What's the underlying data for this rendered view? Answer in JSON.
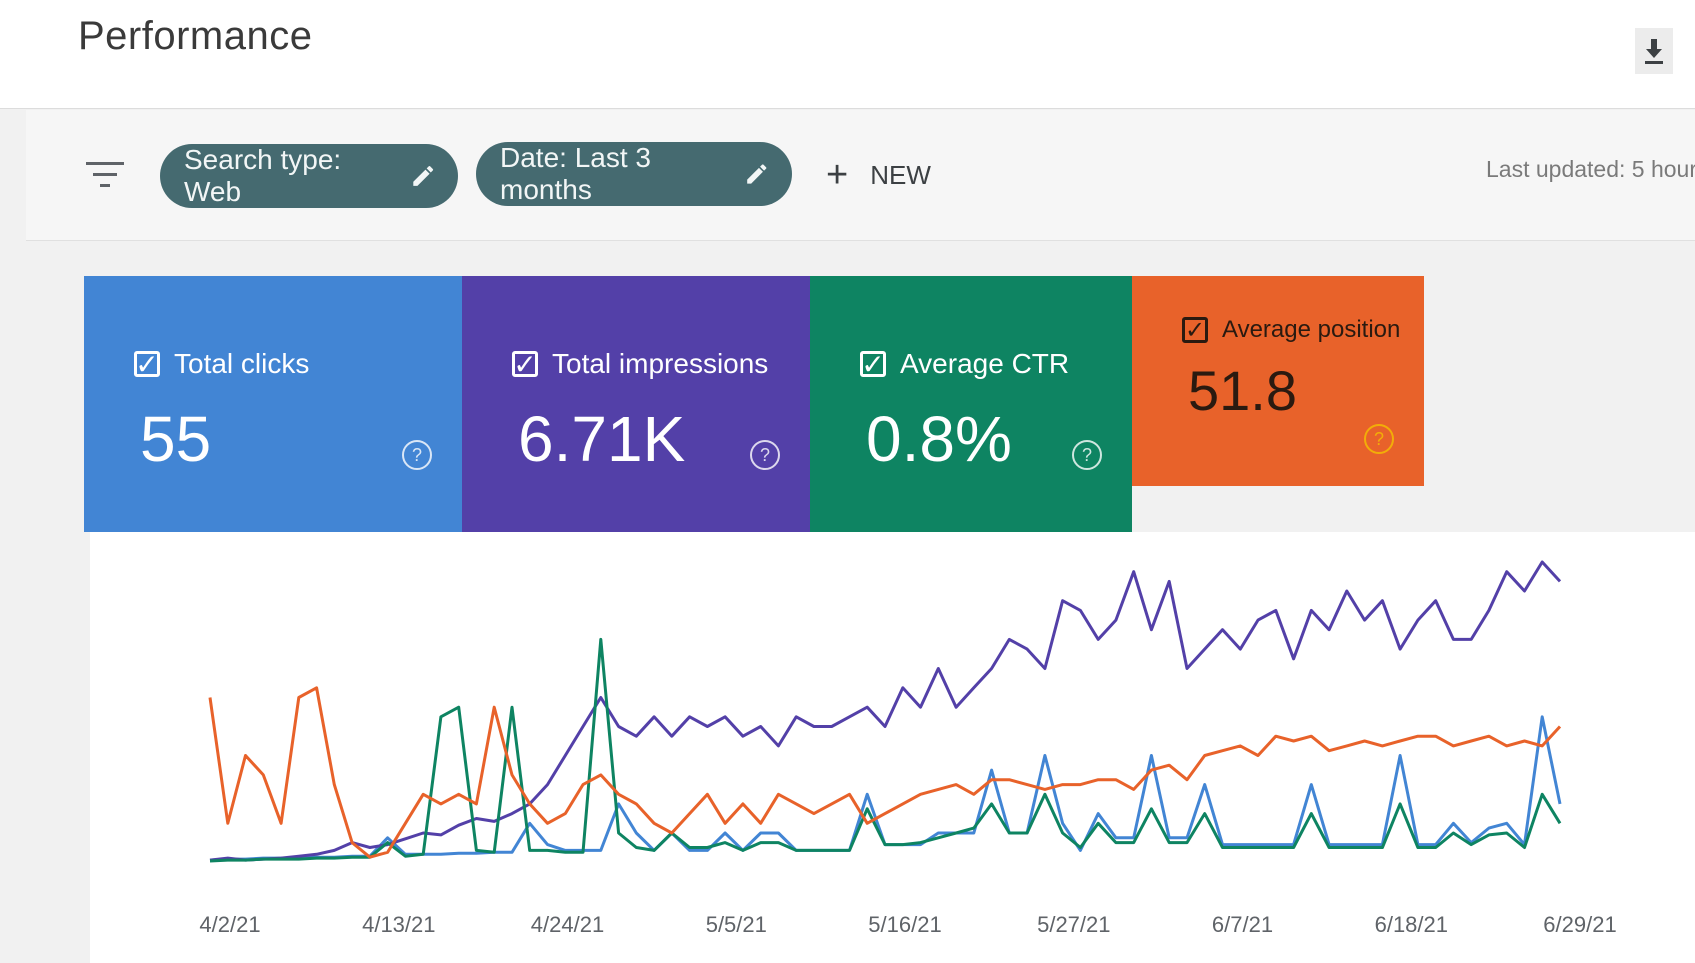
{
  "header": {
    "title": "Performance",
    "download_icon": "download-icon"
  },
  "filters": {
    "filter_icon": "filter-list-icon",
    "search_chip": "Search type: Web",
    "date_chip": "Date: Last 3 months",
    "edit_icon": "pencil-icon",
    "new_label": "NEW",
    "last_updated": "Last updated: 5 hour"
  },
  "cards": [
    {
      "label": "Total clicks",
      "value": "55",
      "color": "#4285d4"
    },
    {
      "label": "Total impressions",
      "value": "6.71K",
      "color": "#5340a8"
    },
    {
      "label": "Average CTR",
      "value": "0.8%",
      "color": "#0e8462"
    },
    {
      "label": "Average position",
      "value": "51.8",
      "color": "#e8622a"
    }
  ],
  "chart_data": {
    "type": "line",
    "x_ticks": [
      "4/2/21",
      "4/13/21",
      "4/24/21",
      "5/5/21",
      "5/16/21",
      "5/27/21",
      "6/7/21",
      "6/18/21",
      "6/29/21"
    ],
    "series": [
      {
        "name": "Total clicks",
        "color": "#4285d4",
        "values": [
          2,
          3,
          3,
          4,
          4,
          4,
          5,
          5,
          6,
          6,
          25,
          8,
          8,
          8,
          9,
          9,
          10,
          10,
          40,
          18,
          12,
          12,
          12,
          60,
          30,
          12,
          30,
          12,
          12,
          30,
          12,
          30,
          30,
          12,
          12,
          12,
          12,
          70,
          18,
          18,
          18,
          30,
          30,
          30,
          95,
          30,
          30,
          110,
          40,
          12,
          50,
          25,
          25,
          110,
          25,
          25,
          80,
          18,
          18,
          18,
          18,
          18,
          80,
          18,
          18,
          18,
          18,
          110,
          18,
          18,
          40,
          20,
          35,
          40,
          18,
          150,
          60
        ]
      },
      {
        "name": "Total impressions",
        "color": "#5340a8",
        "values": [
          2,
          4,
          2,
          3,
          4,
          6,
          8,
          12,
          20,
          15,
          18,
          24,
          30,
          28,
          38,
          45,
          42,
          50,
          60,
          80,
          110,
          140,
          170,
          140,
          130,
          150,
          130,
          150,
          140,
          150,
          130,
          140,
          120,
          150,
          140,
          140,
          150,
          160,
          140,
          180,
          160,
          200,
          160,
          180,
          200,
          230,
          220,
          200,
          270,
          260,
          230,
          250,
          300,
          240,
          290,
          200,
          220,
          240,
          220,
          250,
          260,
          210,
          260,
          240,
          280,
          250,
          270,
          220,
          250,
          270,
          230,
          230,
          260,
          300,
          280,
          310,
          290
        ]
      },
      {
        "name": "Average CTR",
        "color": "#0e8462",
        "values": [
          1,
          2,
          2,
          3,
          3,
          3,
          4,
          4,
          5,
          5,
          20,
          6,
          8,
          150,
          160,
          12,
          10,
          160,
          12,
          12,
          10,
          10,
          230,
          30,
          15,
          12,
          30,
          15,
          15,
          20,
          12,
          20,
          20,
          12,
          12,
          12,
          12,
          55,
          18,
          18,
          20,
          25,
          30,
          35,
          60,
          30,
          30,
          70,
          30,
          15,
          40,
          20,
          20,
          55,
          20,
          20,
          50,
          15,
          15,
          15,
          15,
          15,
          50,
          15,
          15,
          15,
          15,
          60,
          15,
          15,
          30,
          18,
          28,
          30,
          15,
          70,
          40
        ]
      },
      {
        "name": "Average position",
        "color": "#e8622a",
        "values": [
          170,
          40,
          110,
          90,
          40,
          170,
          180,
          80,
          20,
          5,
          10,
          40,
          70,
          60,
          70,
          60,
          160,
          90,
          60,
          40,
          50,
          80,
          90,
          70,
          60,
          40,
          30,
          50,
          70,
          40,
          60,
          40,
          70,
          60,
          50,
          60,
          70,
          40,
          50,
          60,
          70,
          75,
          80,
          70,
          85,
          85,
          80,
          75,
          80,
          80,
          85,
          85,
          75,
          95,
          100,
          85,
          110,
          115,
          120,
          110,
          130,
          125,
          130,
          115,
          120,
          125,
          120,
          125,
          130,
          130,
          120,
          125,
          130,
          120,
          125,
          120,
          140
        ]
      }
    ]
  }
}
